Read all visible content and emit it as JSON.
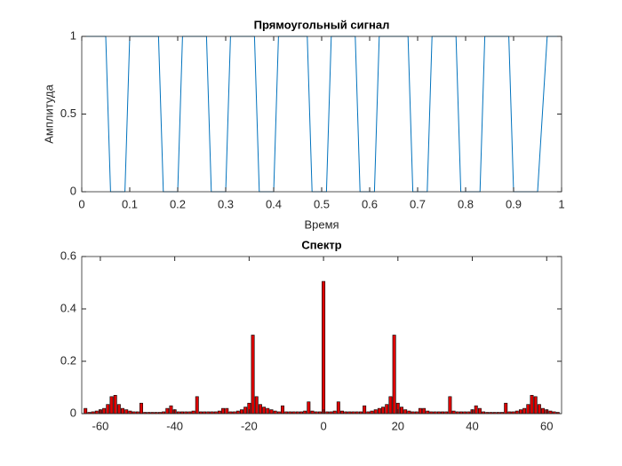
{
  "chart_data": [
    {
      "type": "line",
      "title": "Прямоугольный сигнал",
      "x_label": "Время",
      "y_label": "Амплитуда",
      "color": "#0072bd",
      "x": [
        0,
        0.05,
        0.06,
        0.09,
        0.1,
        0.16,
        0.17,
        0.2,
        0.21,
        0.26,
        0.27,
        0.3,
        0.31,
        0.36,
        0.37,
        0.4,
        0.41,
        0.47,
        0.48,
        0.51,
        0.52,
        0.57,
        0.58,
        0.61,
        0.62,
        0.68,
        0.69,
        0.72,
        0.73,
        0.78,
        0.79,
        0.83,
        0.84,
        0.89,
        0.9,
        0.95,
        0.97,
        1
      ],
      "values": [
        1,
        1,
        0,
        0,
        1,
        1,
        0,
        0,
        1,
        1,
        0,
        0,
        1,
        1,
        0,
        0,
        1,
        1,
        0,
        0,
        1,
        1,
        0,
        0,
        1,
        1,
        0,
        0,
        1,
        1,
        0,
        0,
        1,
        1,
        0,
        0,
        1,
        1
      ],
      "xlim": [
        0,
        1
      ],
      "ylim": [
        0,
        1
      ],
      "xticks": [
        0,
        0.1,
        0.2,
        0.3,
        0.4,
        0.5,
        0.6,
        0.7,
        0.8,
        0.9,
        1
      ],
      "yticks": [
        0,
        0.5,
        1
      ]
    },
    {
      "type": "bar",
      "title": "Спектр",
      "color": "#e00000",
      "x": [
        -64,
        -63,
        -62,
        -61,
        -60,
        -59,
        -58,
        -57,
        -56,
        -55,
        -54,
        -53,
        -52,
        -51,
        -50,
        -49,
        -48,
        -47,
        -46,
        -45,
        -44,
        -43,
        -42,
        -41,
        -40,
        -39,
        -38,
        -37,
        -36,
        -35,
        -34,
        -33,
        -32,
        -31,
        -30,
        -29,
        -28,
        -27,
        -26,
        -25,
        -24,
        -23,
        -22,
        -21,
        -20,
        -19,
        -18,
        -17,
        -16,
        -15,
        -14,
        -13,
        -12,
        -11,
        -10,
        -9,
        -8,
        -7,
        -6,
        -5,
        -4,
        -3,
        -2,
        -1,
        0,
        1,
        2,
        3,
        4,
        5,
        6,
        7,
        8,
        9,
        10,
        11,
        12,
        13,
        14,
        15,
        16,
        17,
        18,
        19,
        20,
        21,
        22,
        23,
        24,
        25,
        26,
        27,
        28,
        29,
        30,
        31,
        32,
        33,
        34,
        35,
        36,
        37,
        38,
        39,
        40,
        41,
        42,
        43,
        44,
        45,
        46,
        47,
        48,
        49,
        50,
        51,
        52,
        53,
        54,
        55,
        56,
        57,
        58,
        59,
        60,
        61,
        62,
        63
      ],
      "values": [
        0.02,
        0.005,
        0.007,
        0.01,
        0.015,
        0.02,
        0.035,
        0.065,
        0.07,
        0.035,
        0.02,
        0.015,
        0.01,
        0.007,
        0.007,
        0.04,
        0.005,
        0.005,
        0.005,
        0.005,
        0.005,
        0.007,
        0.02,
        0.03,
        0.015,
        0.007,
        0.007,
        0.007,
        0.007,
        0.01,
        0.065,
        0.007,
        0.007,
        0.007,
        0.007,
        0.007,
        0.01,
        0.02,
        0.02,
        0.007,
        0.007,
        0.01,
        0.015,
        0.025,
        0.04,
        0.3,
        0.065,
        0.035,
        0.025,
        0.02,
        0.015,
        0.01,
        0.007,
        0.03,
        0.007,
        0.007,
        0.007,
        0.007,
        0.007,
        0.01,
        0.045,
        0.01,
        0.007,
        0.007,
        0.505,
        0.007,
        0.007,
        0.01,
        0.045,
        0.01,
        0.007,
        0.007,
        0.007,
        0.007,
        0.007,
        0.03,
        0.007,
        0.01,
        0.015,
        0.02,
        0.025,
        0.035,
        0.065,
        0.3,
        0.04,
        0.025,
        0.015,
        0.01,
        0.007,
        0.007,
        0.02,
        0.02,
        0.01,
        0.007,
        0.007,
        0.007,
        0.007,
        0.007,
        0.065,
        0.01,
        0.007,
        0.007,
        0.007,
        0.007,
        0.015,
        0.03,
        0.02,
        0.007,
        0.005,
        0.005,
        0.005,
        0.005,
        0.005,
        0.04,
        0.007,
        0.007,
        0.01,
        0.015,
        0.02,
        0.035,
        0.07,
        0.065,
        0.035,
        0.02,
        0.015,
        0.01,
        0.007,
        0.005
      ],
      "xlim": [
        -65,
        64
      ],
      "ylim": [
        0,
        0.6
      ],
      "xticks": [
        -60,
        -40,
        -20,
        0,
        20,
        40,
        60
      ],
      "yticks": [
        0,
        0.2,
        0.4,
        0.6
      ]
    }
  ]
}
